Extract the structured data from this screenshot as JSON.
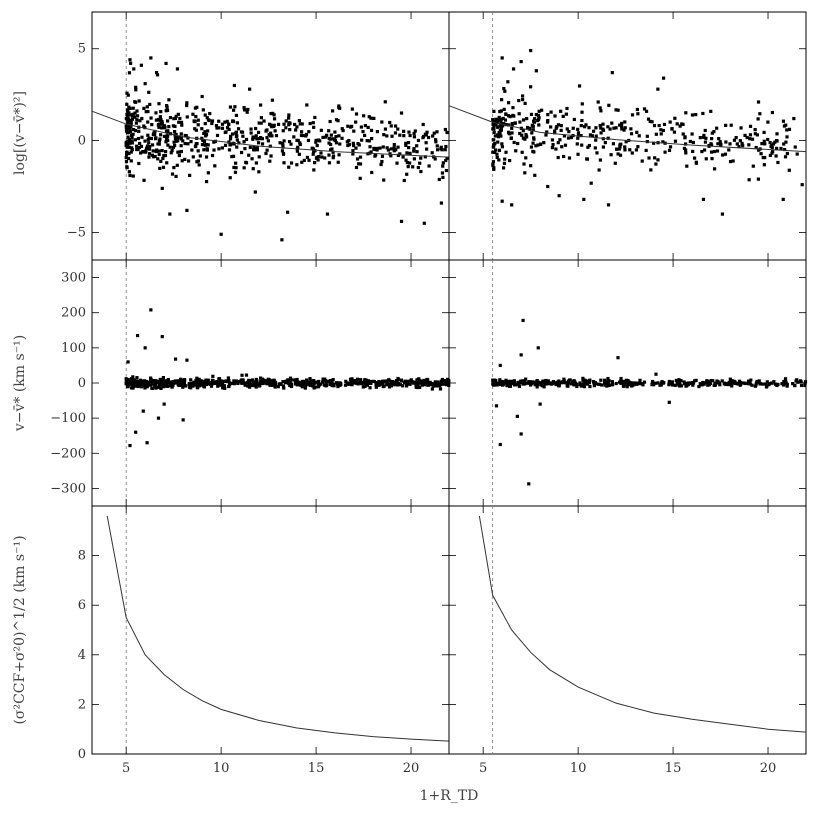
{
  "chart_data": {
    "type": "scatter",
    "xlabel": "1+R_TD",
    "xlim": [
      3.2,
      22
    ],
    "xticks": [
      5,
      10,
      15,
      20
    ],
    "rows": [
      {
        "ylabel": "log[(v−v̄*)²]",
        "ylim": [
          -6.5,
          7
        ],
        "yticks": [
          -5,
          0,
          5
        ],
        "tick_labels": [
          "−5",
          "0",
          "5"
        ]
      },
      {
        "ylabel": "v−v̄*  (km s⁻¹)",
        "ylim": [
          -350,
          350
        ],
        "yticks": [
          -300,
          -200,
          -100,
          0,
          100,
          200,
          300
        ],
        "tick_labels": [
          "−300",
          "−200",
          "−100",
          "0",
          "100",
          "200",
          "300"
        ]
      },
      {
        "ylabel": "(σ²CCF+σ²0)^1/2  (km s⁻¹)",
        "ylim": [
          0,
          10
        ],
        "yticks": [
          0,
          2,
          4,
          6,
          8
        ],
        "tick_labels": [
          "0",
          "2",
          "4",
          "6",
          "8"
        ]
      }
    ],
    "columns": [
      {
        "cutoff_x": 5.0,
        "top_trend": [
          [
            3.2,
            1.6
          ],
          [
            5,
            0.9
          ],
          [
            8,
            0.2
          ],
          [
            12,
            -0.3
          ],
          [
            16,
            -0.6
          ],
          [
            22,
            -0.9
          ]
        ],
        "bottom_curve": [
          [
            4.0,
            9.6
          ],
          [
            5,
            5.5
          ],
          [
            6,
            4.0
          ],
          [
            7,
            3.2
          ],
          [
            8,
            2.6
          ],
          [
            9,
            2.15
          ],
          [
            10,
            1.8
          ],
          [
            12,
            1.35
          ],
          [
            14,
            1.05
          ],
          [
            16,
            0.85
          ],
          [
            18,
            0.7
          ],
          [
            20,
            0.6
          ],
          [
            22,
            0.52
          ]
        ],
        "top_points": [
          [
            5.2,
            4.4
          ],
          [
            5.4,
            3.9
          ],
          [
            5.8,
            4.1
          ],
          [
            6.3,
            4.5
          ],
          [
            6.6,
            3.7
          ],
          [
            7.1,
            4.2
          ],
          [
            7.7,
            3.9
          ],
          [
            5.5,
            2.9
          ],
          [
            6.0,
            3.1
          ],
          [
            5.2,
            -1.9
          ],
          [
            6.9,
            -2.6
          ],
          [
            7.3,
            -4.0
          ],
          [
            8.2,
            -3.8
          ],
          [
            10.0,
            -5.1
          ],
          [
            11.8,
            -2.8
          ],
          [
            13.2,
            -5.4
          ],
          [
            13.5,
            -3.9
          ],
          [
            15.6,
            -4.0
          ],
          [
            19.5,
            -4.4
          ],
          [
            20.7,
            -4.5
          ],
          [
            21.6,
            -3.4
          ],
          [
            10.7,
            3.0
          ],
          [
            11.5,
            2.8
          ],
          [
            16.2,
            1.8
          ],
          [
            19.5,
            1.5
          ],
          [
            9.0,
            2.4
          ],
          [
            12.7,
            2.2
          ],
          [
            17.8,
            1.3
          ]
        ],
        "mid_points": [
          [
            5.1,
            60
          ],
          [
            5.6,
            135
          ],
          [
            6.3,
            208
          ],
          [
            6.9,
            132
          ],
          [
            7.6,
            68
          ],
          [
            8.2,
            65
          ],
          [
            6.0,
            100
          ],
          [
            5.5,
            -140
          ],
          [
            5.2,
            -178
          ],
          [
            6.1,
            -170
          ],
          [
            6.7,
            -100
          ],
          [
            8.0,
            -105
          ],
          [
            5.9,
            -80
          ],
          [
            7.0,
            -60
          ],
          [
            11.1,
            22
          ],
          [
            10.4,
            -10
          ],
          [
            14.0,
            10
          ],
          [
            19.7,
            5
          ]
        ],
        "density": {
          "top_mu": 0.5,
          "top_sd": 1.05,
          "mid_sd": 6,
          "n": 700,
          "seed": 11
        }
      },
      {
        "cutoff_x": 5.5,
        "top_trend": [
          [
            3.2,
            1.9
          ],
          [
            5.5,
            1.0
          ],
          [
            8,
            0.45
          ],
          [
            12,
            0.05
          ],
          [
            16,
            -0.25
          ],
          [
            22,
            -0.6
          ]
        ],
        "bottom_curve": [
          [
            4.8,
            9.6
          ],
          [
            5.5,
            6.4
          ],
          [
            6.5,
            5.0
          ],
          [
            7.5,
            4.1
          ],
          [
            8.5,
            3.4
          ],
          [
            10,
            2.7
          ],
          [
            12,
            2.05
          ],
          [
            14,
            1.65
          ],
          [
            16,
            1.4
          ],
          [
            18,
            1.2
          ],
          [
            20,
            1.0
          ],
          [
            22,
            0.88
          ]
        ],
        "top_points": [
          [
            6.0,
            4.5
          ],
          [
            6.6,
            3.9
          ],
          [
            7.0,
            4.3
          ],
          [
            7.5,
            4.9
          ],
          [
            7.8,
            3.8
          ],
          [
            6.3,
            3.2
          ],
          [
            11.8,
            3.7
          ],
          [
            14.5,
            3.4
          ],
          [
            14.2,
            2.8
          ],
          [
            19.5,
            2.1
          ],
          [
            6.0,
            -3.3
          ],
          [
            6.5,
            -3.5
          ],
          [
            9.0,
            -3.0
          ],
          [
            10.3,
            -3.2
          ],
          [
            11.6,
            -3.5
          ],
          [
            16.6,
            -3.2
          ],
          [
            17.6,
            -4.0
          ],
          [
            20.8,
            -3.2
          ],
          [
            21.8,
            -2.4
          ],
          [
            8.4,
            -2.5
          ]
        ],
        "mid_points": [
          [
            7.1,
            178
          ],
          [
            7.0,
            80
          ],
          [
            7.9,
            100
          ],
          [
            5.9,
            50
          ],
          [
            12.1,
            72
          ],
          [
            5.7,
            -65
          ],
          [
            5.9,
            -175
          ],
          [
            6.8,
            -95
          ],
          [
            7.4,
            -287
          ],
          [
            7.0,
            -145
          ],
          [
            8.0,
            -60
          ],
          [
            14.8,
            -55
          ],
          [
            14.1,
            25
          ],
          [
            18.5,
            5
          ]
        ],
        "density": {
          "top_mu": 0.6,
          "top_sd": 0.95,
          "mid_sd": 5,
          "n": 430,
          "seed": 29
        }
      }
    ]
  }
}
